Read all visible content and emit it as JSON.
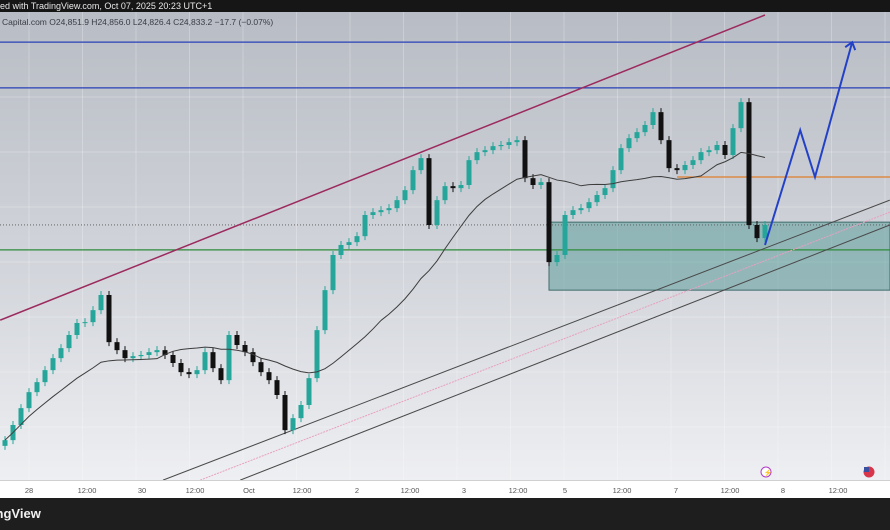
{
  "header": {
    "published": "ed with TradingView.com, Oct 07, 2025 20:23 UTC+1",
    "legend": "Capital.com  O24,851.9  H24,856.0  L24,826.4  C24,833.2  −17.7 (−0.07%)"
  },
  "footer": {
    "brand": "dingView"
  },
  "icons": {
    "event": "lightning-event-icon",
    "flag": "us-flag-icon"
  },
  "colors": {
    "up": "#26a69a",
    "down": "#111111",
    "ma": "#3d3d3d",
    "trendline": "#9c2a5e",
    "resistance": "#2741b8",
    "support": "#2e8b3a",
    "orange_level": "#e07b2a",
    "zone": "#5f9e9c",
    "projection": "#2341c8",
    "channel": "#4a4a4a",
    "channel_mid": "#e8a0c0"
  },
  "chart_data": {
    "type": "candlestick",
    "instrument_source": "Capital.com",
    "last_close": 24833.2,
    "x_tick_labels": [
      "28",
      "12:00",
      "30",
      "12:00",
      "Oct",
      "12:00",
      "2",
      "12:00",
      "3",
      "12:00",
      "5",
      "12:00",
      "7",
      "12:00",
      "8",
      "12:00"
    ],
    "closes": [
      24080,
      24133,
      24192,
      24248,
      24283,
      24325,
      24367,
      24402,
      24448,
      24490,
      24493,
      24535,
      24588,
      24423,
      24395,
      24367,
      24374,
      24378,
      24388,
      24395,
      24378,
      24350,
      24318,
      24311,
      24325,
      24388,
      24332,
      24290,
      24448,
      24413,
      24388,
      24353,
      24318,
      24290,
      24238,
      24115,
      24157,
      24203,
      24297,
      24465,
      24605,
      24728,
      24763,
      24773,
      24794,
      24868,
      24878,
      24885,
      24892,
      24920,
      24955,
      25025,
      25067,
      24833,
      24920,
      24969,
      24962,
      24973,
      25060,
      25088,
      25095,
      25109,
      25113,
      25123,
      25130,
      24997,
      24973,
      24983,
      24703,
      24728,
      24868,
      24885,
      24892,
      24913,
      24938,
      24962,
      25025,
      25102,
      25137,
      25158,
      25183,
      25228,
      25130,
      25032,
      25025,
      25043,
      25060,
      25088,
      25095,
      25113,
      25078,
      25172,
      25263,
      24833,
      24787,
      24833.2
    ],
    "moving_average": {
      "period": 20
    },
    "levels": {
      "resistance_1": 25473,
      "resistance_2": 25313,
      "orange": 25001,
      "support": 24746
    },
    "zone": {
      "top": 24843,
      "bottom": 24605,
      "from_index": 68
    },
    "trendline": [
      [
        -0.6,
        24500
      ],
      [
        95,
        25568
      ]
    ],
    "channel_lower_1": [
      [
        19.75,
        23940
      ],
      [
        110.6,
        24920
      ]
    ],
    "channel_lower_2": [
      [
        29.4,
        23940
      ],
      [
        110.6,
        24833
      ]
    ],
    "channel_mid": [
      [
        24.4,
        23940
      ],
      [
        110.6,
        24878
      ]
    ],
    "projection": [
      [
        95,
        24763
      ],
      [
        99.4,
        25165
      ],
      [
        101.25,
        25001
      ],
      [
        105.9,
        25473
      ]
    ]
  }
}
